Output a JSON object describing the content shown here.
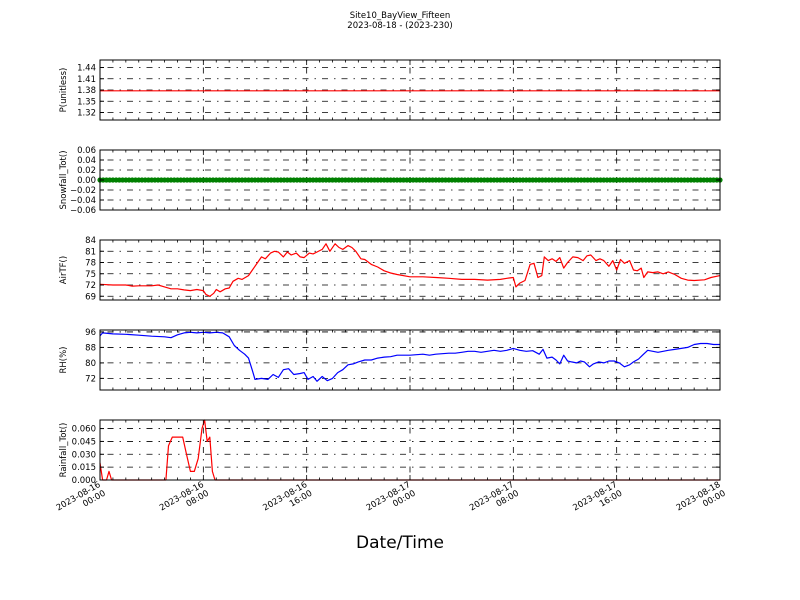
{
  "header": {
    "title": "Site10_BayView_Fifteen",
    "subtitle": "2023-08-18 - (2023-230)"
  },
  "xlabel": "Date/Time",
  "colors": {
    "red": "#ff0000",
    "green": "#008000",
    "blue": "#0000ff"
  },
  "chart_data": {
    "type": "line",
    "x_range_hours": [
      0,
      48
    ],
    "x_ticks": [
      {
        "h": 0,
        "line1": "2023-08-16",
        "line2": "00:00"
      },
      {
        "h": 8,
        "line1": "2023-08-16",
        "line2": "08:00"
      },
      {
        "h": 16,
        "line1": "2023-08-16",
        "line2": "16:00"
      },
      {
        "h": 24,
        "line1": "2023-08-17",
        "line2": "00:00"
      },
      {
        "h": 32,
        "line1": "2023-08-17",
        "line2": "08:00"
      },
      {
        "h": 40,
        "line1": "2023-08-17",
        "line2": "16:00"
      },
      {
        "h": 48,
        "line1": "2023-08-18",
        "line2": "00:00"
      }
    ],
    "panels": [
      {
        "ylabel": "P(unitless)",
        "ylim": [
          1.3,
          1.46
        ],
        "yticks": [
          1.32,
          1.35,
          1.38,
          1.41,
          1.44
        ],
        "ytick_labels": [
          "1.32",
          "1.35",
          "1.38",
          "1.41",
          "1.44"
        ],
        "color": "#ff0000",
        "style": "line",
        "points": [
          [
            0,
            1.378
          ],
          [
            48,
            1.378
          ]
        ]
      },
      {
        "ylabel": "Snowfall_Tot()",
        "ylim": [
          -0.06,
          0.06
        ],
        "yticks": [
          -0.06,
          -0.04,
          -0.02,
          0.0,
          0.02,
          0.04,
          0.06
        ],
        "ytick_labels": [
          "−0.06",
          "−0.04",
          "−0.02",
          "0.00",
          "0.02",
          "0.04",
          "0.06"
        ],
        "color": "#008000",
        "style": "markers",
        "points": [
          [
            0,
            0
          ],
          [
            48,
            0
          ]
        ]
      },
      {
        "ylabel": "AirTF()",
        "ylim": [
          68,
          84
        ],
        "yticks": [
          69,
          72,
          75,
          78,
          81,
          84
        ],
        "ytick_labels": [
          "69",
          "72",
          "75",
          "78",
          "81",
          "84"
        ],
        "color": "#ff0000",
        "style": "line",
        "points": [
          [
            0,
            72.2
          ],
          [
            1,
            72.0
          ],
          [
            2,
            72.0
          ],
          [
            2.5,
            71.7
          ],
          [
            3,
            71.8
          ],
          [
            4,
            71.8
          ],
          [
            4.5,
            72.0
          ],
          [
            5,
            71.5
          ],
          [
            5.5,
            71.0
          ],
          [
            6,
            71.0
          ],
          [
            6.5,
            70.7
          ],
          [
            7,
            70.5
          ],
          [
            7.5,
            70.8
          ],
          [
            8,
            70.5
          ],
          [
            8.2,
            69.5
          ],
          [
            8.5,
            69.0
          ],
          [
            8.8,
            69.8
          ],
          [
            9,
            70.8
          ],
          [
            9.3,
            70.2
          ],
          [
            9.7,
            71.0
          ],
          [
            10,
            71.2
          ],
          [
            10.3,
            73.0
          ],
          [
            10.7,
            73.8
          ],
          [
            11,
            73.5
          ],
          [
            11.5,
            74.5
          ],
          [
            11.8,
            76.0
          ],
          [
            12.2,
            78.0
          ],
          [
            12.5,
            79.5
          ],
          [
            12.8,
            79.0
          ],
          [
            13.2,
            80.5
          ],
          [
            13.5,
            81.0
          ],
          [
            13.8,
            80.8
          ],
          [
            14.2,
            79.5
          ],
          [
            14.5,
            80.8
          ],
          [
            14.8,
            80.0
          ],
          [
            15.2,
            80.5
          ],
          [
            15.5,
            79.5
          ],
          [
            15.8,
            79.3
          ],
          [
            16.2,
            80.5
          ],
          [
            16.5,
            80.3
          ],
          [
            16.8,
            80.8
          ],
          [
            17.2,
            81.5
          ],
          [
            17.5,
            83.0
          ],
          [
            17.8,
            81.0
          ],
          [
            18.2,
            83.0
          ],
          [
            18.5,
            82.0
          ],
          [
            18.8,
            81.5
          ],
          [
            19.2,
            82.5
          ],
          [
            19.5,
            82.0
          ],
          [
            19.8,
            81.0
          ],
          [
            20.2,
            79.0
          ],
          [
            20.5,
            78.8
          ],
          [
            21,
            77.5
          ],
          [
            21.5,
            76.8
          ],
          [
            22,
            75.8
          ],
          [
            22.5,
            75.2
          ],
          [
            23,
            74.8
          ],
          [
            24,
            74.2
          ],
          [
            25,
            74.2
          ],
          [
            26,
            74.0
          ],
          [
            27,
            73.8
          ],
          [
            28,
            73.5
          ],
          [
            29,
            73.5
          ],
          [
            30,
            73.3
          ],
          [
            31,
            73.5
          ],
          [
            31.5,
            73.8
          ],
          [
            32,
            74.0
          ],
          [
            32.2,
            71.5
          ],
          [
            32.5,
            72.5
          ],
          [
            32.9,
            73.2
          ],
          [
            33.3,
            77.5
          ],
          [
            33.6,
            77.8
          ],
          [
            33.9,
            74.0
          ],
          [
            34.2,
            74.5
          ],
          [
            34.4,
            79.5
          ],
          [
            34.7,
            78.5
          ],
          [
            35,
            79.0
          ],
          [
            35.3,
            78.3
          ],
          [
            35.6,
            79.3
          ],
          [
            35.9,
            76.5
          ],
          [
            36.2,
            78.0
          ],
          [
            36.6,
            79.5
          ],
          [
            37,
            79.3
          ],
          [
            37.4,
            78.5
          ],
          [
            37.7,
            79.8
          ],
          [
            38,
            80.0
          ],
          [
            38.4,
            78.5
          ],
          [
            38.7,
            79.0
          ],
          [
            39,
            78.5
          ],
          [
            39.4,
            77.0
          ],
          [
            39.7,
            78.5
          ],
          [
            40,
            76.0
          ],
          [
            40.3,
            78.8
          ],
          [
            40.6,
            77.8
          ],
          [
            41,
            78.5
          ],
          [
            41.3,
            76.0
          ],
          [
            41.6,
            75.8
          ],
          [
            41.9,
            76.5
          ],
          [
            42.1,
            74.0
          ],
          [
            42.4,
            75.5
          ],
          [
            42.8,
            75.3
          ],
          [
            43.2,
            75.5
          ],
          [
            43.6,
            75.0
          ],
          [
            44,
            75.5
          ],
          [
            44.5,
            74.8
          ],
          [
            45,
            73.8
          ],
          [
            45.5,
            73.3
          ],
          [
            46,
            73.2
          ],
          [
            46.8,
            73.4
          ],
          [
            47.3,
            74.0
          ],
          [
            48,
            74.5
          ]
        ]
      },
      {
        "ylabel": "RH(%)",
        "ylim": [
          66,
          97
        ],
        "yticks": [
          72,
          80,
          88,
          96
        ],
        "ytick_labels": [
          "72",
          "80",
          "88",
          "96"
        ],
        "color": "#0000ff",
        "style": "line",
        "points": [
          [
            0,
            94.0
          ],
          [
            0.2,
            95.5
          ],
          [
            1,
            95.0
          ],
          [
            2,
            94.8
          ],
          [
            3,
            94.3
          ],
          [
            4,
            93.8
          ],
          [
            5,
            93.5
          ],
          [
            5.5,
            93.0
          ],
          [
            6,
            94.5
          ],
          [
            6.5,
            95.5
          ],
          [
            7,
            95.8
          ],
          [
            7.5,
            95.5
          ],
          [
            8,
            95.8
          ],
          [
            8.5,
            95.5
          ],
          [
            9,
            95.8
          ],
          [
            9.5,
            95.5
          ],
          [
            10,
            93.5
          ],
          [
            10.4,
            89.0
          ],
          [
            10.8,
            86.5
          ],
          [
            11.2,
            84.5
          ],
          [
            11.5,
            82.5
          ],
          [
            11.8,
            76.0
          ],
          [
            12,
            71.5
          ],
          [
            12.5,
            72.0
          ],
          [
            13,
            71.5
          ],
          [
            13.4,
            74.0
          ],
          [
            13.8,
            72.5
          ],
          [
            14.2,
            76.5
          ],
          [
            14.6,
            77.0
          ],
          [
            15,
            74.0
          ],
          [
            15.5,
            74.5
          ],
          [
            15.8,
            75.0
          ],
          [
            16.1,
            71.5
          ],
          [
            16.5,
            73.0
          ],
          [
            16.8,
            70.5
          ],
          [
            17.2,
            73.0
          ],
          [
            17.6,
            70.8
          ],
          [
            18,
            72.0
          ],
          [
            18.4,
            75.0
          ],
          [
            18.8,
            76.5
          ],
          [
            19.2,
            79.0
          ],
          [
            19.6,
            79.5
          ],
          [
            20,
            80.5
          ],
          [
            20.5,
            81.5
          ],
          [
            21,
            81.5
          ],
          [
            21.5,
            82.5
          ],
          [
            22,
            83.0
          ],
          [
            22.5,
            83.2
          ],
          [
            23,
            84.0
          ],
          [
            23.5,
            84.0
          ],
          [
            24,
            84.0
          ],
          [
            25,
            84.5
          ],
          [
            25.5,
            84.0
          ],
          [
            26,
            84.5
          ],
          [
            27,
            85.0
          ],
          [
            27.5,
            85.0
          ],
          [
            28,
            85.5
          ],
          [
            28.5,
            86.0
          ],
          [
            29,
            86.0
          ],
          [
            29.5,
            85.5
          ],
          [
            30,
            86.0
          ],
          [
            30.5,
            86.5
          ],
          [
            31,
            86.0
          ],
          [
            31.5,
            86.5
          ],
          [
            32,
            87.5
          ],
          [
            32.5,
            86.5
          ],
          [
            33,
            86.0
          ],
          [
            33.5,
            86.3
          ],
          [
            34,
            84.5
          ],
          [
            34.3,
            87.0
          ],
          [
            34.6,
            82.5
          ],
          [
            35,
            83.0
          ],
          [
            35.3,
            81.5
          ],
          [
            35.6,
            79.5
          ],
          [
            35.9,
            84.0
          ],
          [
            36.2,
            81.0
          ],
          [
            36.5,
            80.5
          ],
          [
            36.9,
            80.0
          ],
          [
            37.2,
            81.0
          ],
          [
            37.5,
            80.5
          ],
          [
            37.9,
            78.0
          ],
          [
            38.2,
            79.5
          ],
          [
            38.6,
            80.5
          ],
          [
            39,
            80.0
          ],
          [
            39.4,
            81.0
          ],
          [
            39.8,
            81.0
          ],
          [
            40.2,
            80.0
          ],
          [
            40.6,
            78.0
          ],
          [
            41,
            79.0
          ],
          [
            41.3,
            80.5
          ],
          [
            41.7,
            82.0
          ],
          [
            42,
            84.0
          ],
          [
            42.4,
            86.5
          ],
          [
            42.8,
            86.0
          ],
          [
            43.2,
            85.5
          ],
          [
            43.6,
            86.0
          ],
          [
            44,
            86.5
          ],
          [
            44.5,
            87.0
          ],
          [
            45,
            87.5
          ],
          [
            45.5,
            88.0
          ],
          [
            46,
            89.5
          ],
          [
            46.5,
            90.0
          ],
          [
            47,
            90.0
          ],
          [
            47.5,
            89.5
          ],
          [
            48,
            89.5
          ]
        ]
      },
      {
        "ylabel": "Rainfall_Tot()",
        "ylim": [
          0.0,
          0.07
        ],
        "yticks": [
          0.0,
          0.015,
          0.03,
          0.045,
          0.06
        ],
        "ytick_labels": [
          "0.000",
          "0.015",
          "0.030",
          "0.045",
          "0.060"
        ],
        "color": "#ff0000",
        "style": "line",
        "points": [
          [
            0,
            0.02
          ],
          [
            0.2,
            0.0
          ],
          [
            0.5,
            0.0
          ],
          [
            0.7,
            0.01
          ],
          [
            0.9,
            0.0
          ],
          [
            1.2,
            0.0
          ],
          [
            2,
            0.0
          ],
          [
            3,
            0.0
          ],
          [
            4,
            0.0
          ],
          [
            5,
            0.0
          ],
          [
            5.1,
            0.0
          ],
          [
            5.3,
            0.04
          ],
          [
            5.6,
            0.05
          ],
          [
            6,
            0.05
          ],
          [
            6.4,
            0.05
          ],
          [
            6.7,
            0.03
          ],
          [
            7,
            0.01
          ],
          [
            7.3,
            0.01
          ],
          [
            7.6,
            0.025
          ],
          [
            7.9,
            0.06
          ],
          [
            8.1,
            0.07
          ],
          [
            8.3,
            0.045
          ],
          [
            8.5,
            0.05
          ],
          [
            8.7,
            0.01
          ],
          [
            8.9,
            0.0
          ],
          [
            9.2,
            0.0
          ],
          [
            10,
            0.0
          ],
          [
            16,
            0.0
          ],
          [
            24,
            0.0
          ],
          [
            32,
            0.0
          ],
          [
            40,
            0.0
          ],
          [
            48,
            0.0
          ]
        ]
      }
    ]
  }
}
